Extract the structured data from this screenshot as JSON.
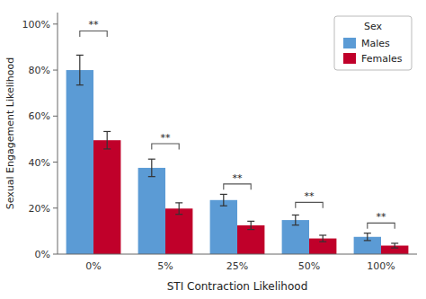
{
  "chart_data": {
    "type": "bar",
    "xlabel": "STI Contraction Likelihood",
    "ylabel": "Sexual Engagement Likelihood",
    "legend_title": "Sex",
    "legend": "upper right",
    "grid": false,
    "categories": [
      "0%",
      "5%",
      "25%",
      "50%",
      "100%"
    ],
    "series": [
      {
        "name": "Males",
        "color": "#5B9BD5",
        "values": [
          0.8,
          0.375,
          0.235,
          0.148,
          0.075
        ],
        "errors": [
          0.065,
          0.038,
          0.025,
          0.022,
          0.016
        ]
      },
      {
        "name": "Females",
        "color": "#C0002A",
        "values": [
          0.495,
          0.198,
          0.125,
          0.068,
          0.037
        ],
        "errors": [
          0.038,
          0.025,
          0.018,
          0.014,
          0.01
        ]
      }
    ],
    "ylim": [
      0,
      1.05
    ],
    "yticks": [
      {
        "value": 0,
        "label": "0%"
      },
      {
        "value": 0.2,
        "label": "20%"
      },
      {
        "value": 0.4,
        "label": "40%"
      },
      {
        "value": 0.6,
        "label": "60%"
      },
      {
        "value": 0.8,
        "label": "80%"
      },
      {
        "value": 1.0,
        "label": "100%"
      }
    ],
    "annotations": [
      {
        "text": "**",
        "category": "0%",
        "y": 0.97,
        "drop": 0.025
      },
      {
        "text": "**",
        "category": "5%",
        "y": 0.48,
        "drop": 0.025
      },
      {
        "text": "**",
        "category": "25%",
        "y": 0.305,
        "drop": 0.025
      },
      {
        "text": "**",
        "category": "50%",
        "y": 0.225,
        "drop": 0.025
      },
      {
        "text": "**",
        "category": "100%",
        "y": 0.135,
        "drop": 0.025
      }
    ]
  }
}
